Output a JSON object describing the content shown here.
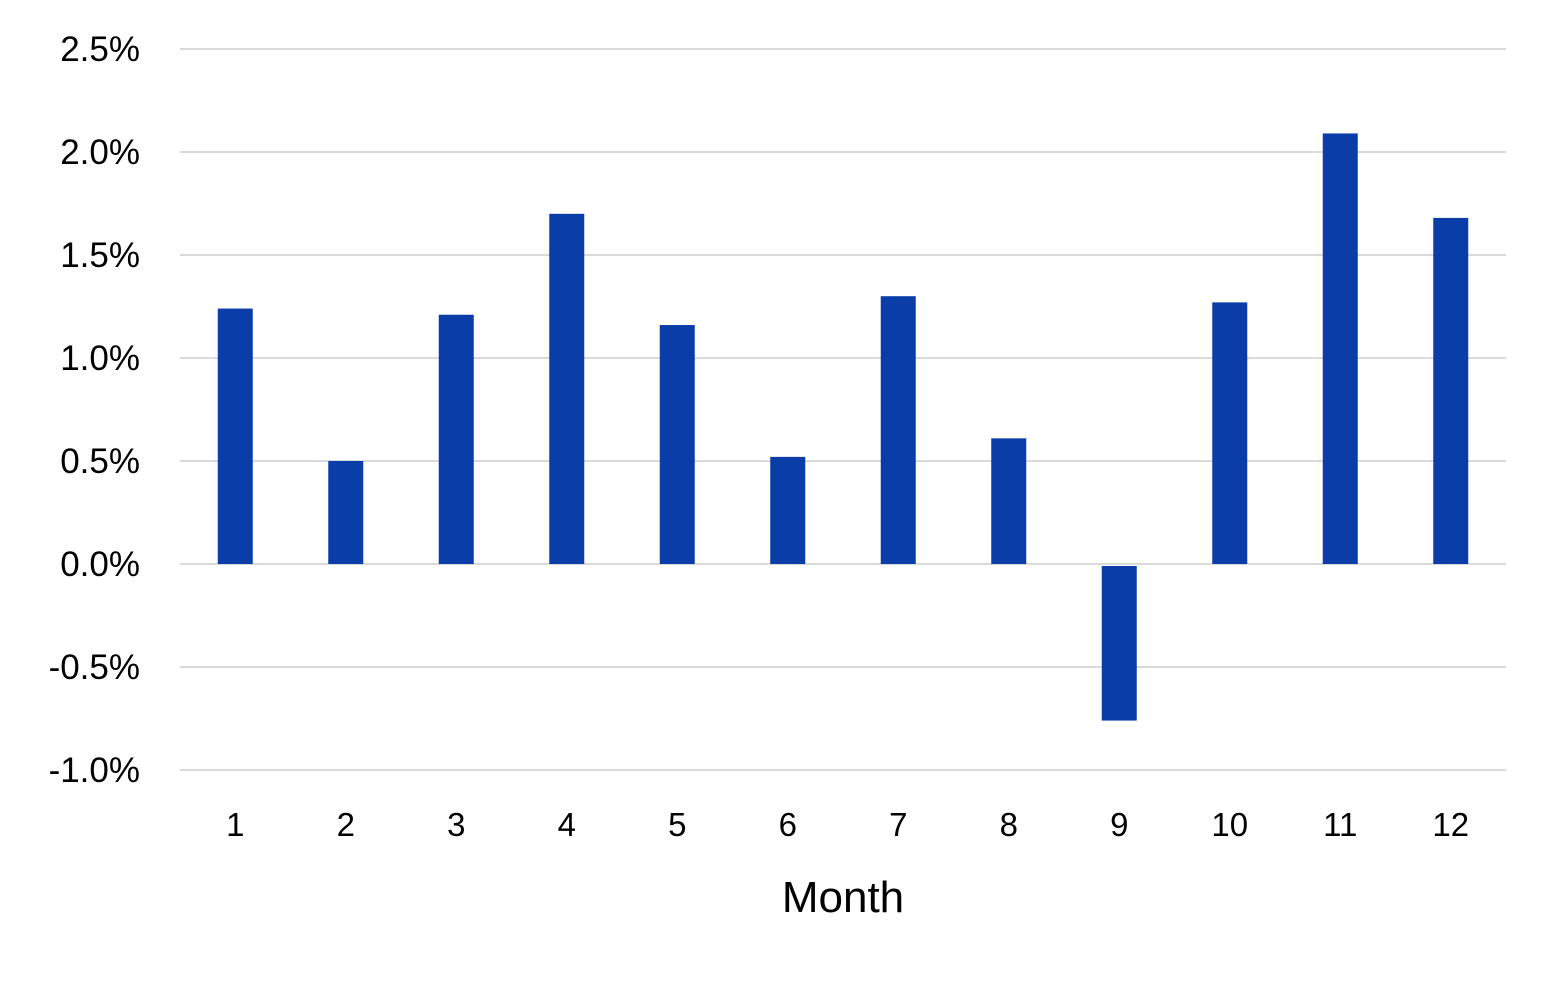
{
  "chart_data": {
    "type": "bar",
    "title": "",
    "xlabel": "Month",
    "ylabel": "",
    "categories": [
      "1",
      "2",
      "3",
      "4",
      "5",
      "6",
      "7",
      "8",
      "9",
      "10",
      "11",
      "12"
    ],
    "series": [
      {
        "values": [
          0.0124,
          0.005,
          0.0121,
          0.017,
          0.0116,
          0.0052,
          0.013,
          0.0061,
          -0.0076,
          0.0127,
          0.0209,
          0.0168
        ]
      }
    ],
    "ylim": [
      -0.01,
      0.025
    ],
    "yticks": [
      -0.01,
      -0.005,
      0.0,
      0.005,
      0.01,
      0.015,
      0.02,
      0.025
    ],
    "ytick_labels": [
      "-1.0%",
      "-0.5%",
      "0.0%",
      "0.5%",
      "1.0%",
      "1.5%",
      "2.0%",
      "2.5%"
    ],
    "y_format": "percent",
    "grid": true,
    "legend": "none",
    "colors": {
      "bar": "#0a3da8",
      "grid": "#d9d9d9"
    }
  }
}
